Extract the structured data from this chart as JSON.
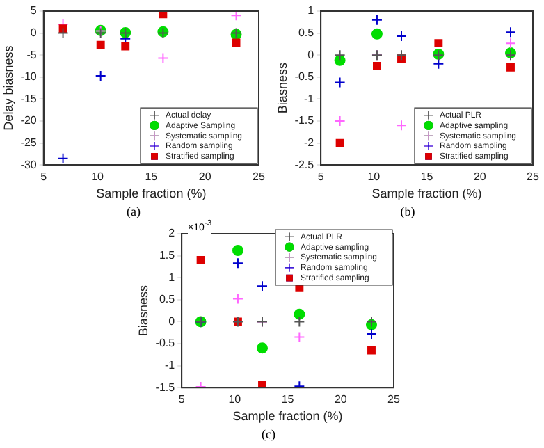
{
  "chart_data": [
    {
      "type": "scatter",
      "xlabel": "Sample fraction (%)",
      "ylabel": "Delay biasness",
      "annotations": [
        "(a)"
      ],
      "x": [
        6.8,
        10.3,
        12.6,
        16.1,
        22.9
      ],
      "xlim": [
        5,
        25
      ],
      "xticks": [
        5,
        10,
        15,
        20,
        25
      ],
      "ylim": [
        -30,
        5
      ],
      "yticks": [
        -30,
        -25,
        -20,
        -15,
        -10,
        -5,
        0,
        5
      ],
      "legend": "bottom right",
      "grid": false,
      "series": [
        {
          "name": "Actual delay",
          "color": "#555555",
          "marker": "cross",
          "values": [
            0,
            0,
            0,
            0,
            0
          ]
        },
        {
          "name": "Adaptive Sampling",
          "color": "#00dd00",
          "marker": "circle",
          "values": [
            null,
            0.6,
            0.1,
            0.3,
            -0.3
          ]
        },
        {
          "name": "Systematic sampling",
          "color": "#ff66ff",
          "marker": "cross",
          "values": [
            2,
            0.5,
            null,
            -5.7,
            4
          ]
        },
        {
          "name": "Random sampling",
          "color": "#0000cc",
          "marker": "cross",
          "values": [
            -28.5,
            -9.7,
            -1.3,
            null,
            null
          ]
        },
        {
          "name": "Stratified sampling",
          "color": "#dd0000",
          "marker": "square",
          "values": [
            1,
            -2.7,
            -3,
            4.3,
            -2.2
          ]
        }
      ]
    },
    {
      "type": "scatter",
      "xlabel": "Sample fraction (%)",
      "ylabel": "Biasness",
      "annotations": [
        "(b)"
      ],
      "x": [
        6.8,
        10.3,
        12.6,
        16.1,
        22.9
      ],
      "xlim": [
        5,
        25
      ],
      "xticks": [
        5,
        10,
        15,
        20,
        25
      ],
      "ylim": [
        -2.5,
        1
      ],
      "yticks": [
        -2.5,
        -2,
        -1.5,
        -1,
        -0.5,
        0,
        0.5,
        1
      ],
      "legend": "bottom right",
      "grid": false,
      "series": [
        {
          "name": "Actual PLR",
          "color": "#555555",
          "marker": "cross",
          "values": [
            0,
            0,
            0,
            0,
            0
          ]
        },
        {
          "name": "Adaptive sampling",
          "color": "#00dd00",
          "marker": "circle",
          "values": [
            -0.12,
            0.48,
            null,
            0.02,
            0.05
          ]
        },
        {
          "name": "Systematic sampling",
          "color": "#ff66ff",
          "marker": "cross",
          "values": [
            -1.5,
            0,
            -1.6,
            null,
            0.27
          ]
        },
        {
          "name": "Random sampling",
          "color": "#0000cc",
          "marker": "cross",
          "values": [
            -0.62,
            0.8,
            0.43,
            -0.2,
            0.52
          ]
        },
        {
          "name": "Stratified sampling",
          "color": "#dd0000",
          "marker": "square",
          "values": [
            -2,
            -0.25,
            -0.08,
            0.27,
            -0.28
          ]
        }
      ]
    },
    {
      "type": "scatter",
      "xlabel": "Sample fraction (%)",
      "ylabel": "Biasness",
      "annotations": [
        "×10$^{-3}$",
        "(c)"
      ],
      "x": [
        6.8,
        10.3,
        12.6,
        16.1,
        22.9
      ],
      "xlim": [
        5,
        25
      ],
      "xticks": [
        5,
        10,
        15,
        20,
        25
      ],
      "ylim": [
        -1.5,
        2
      ],
      "yticks": [
        -1.5,
        -1,
        -0.5,
        0,
        0.5,
        1,
        1.5,
        2
      ],
      "legend": "top right",
      "grid": false,
      "series": [
        {
          "name": "Actual PLR",
          "color": "#555555",
          "marker": "cross",
          "values": [
            0,
            0,
            0,
            0,
            0
          ]
        },
        {
          "name": "Adaptive sampling",
          "color": "#00dd00",
          "marker": "circle",
          "values": [
            0,
            1.62,
            -0.6,
            0.17,
            -0.07
          ]
        },
        {
          "name": "Systematic sampling",
          "color": "#ff66ff",
          "marker": "cross",
          "values": [
            -1.48,
            0.52,
            0,
            -0.35,
            null
          ]
        },
        {
          "name": "Random sampling",
          "color": "#0000cc",
          "marker": "cross",
          "values": [
            0,
            1.33,
            0.81,
            -1.47,
            -0.28
          ]
        },
        {
          "name": "Stratified sampling",
          "color": "#dd0000",
          "marker": "square",
          "values": [
            1.4,
            0,
            -1.44,
            0.77,
            -0.65
          ]
        }
      ]
    }
  ]
}
